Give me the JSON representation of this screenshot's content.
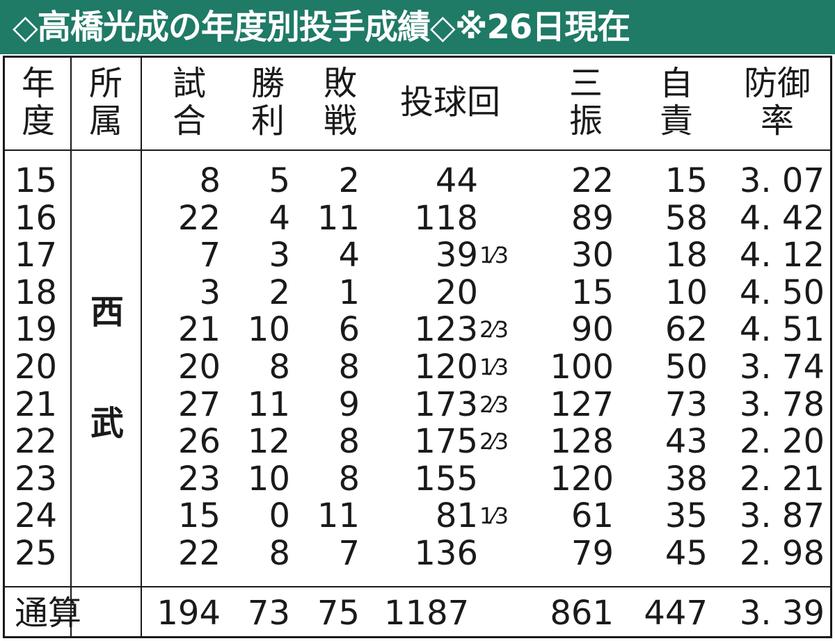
{
  "title": "◇高橋光成の年度別投手成績◇※26日現在",
  "headers": {
    "year": "年\n度",
    "team": "所\n属",
    "games": "試\n合",
    "wins": "勝\n利",
    "losses": "敗\n戦",
    "innings": "投球回",
    "strikeouts": "三\n振",
    "earned_runs": "自\n責",
    "era": "防御\n率"
  },
  "team_chars": [
    "西",
    "武"
  ],
  "rows": [
    {
      "year": "15",
      "games": "8",
      "wins": "5",
      "losses": "2",
      "ip": "44",
      "ip_frac": "",
      "so": "22",
      "er": "15",
      "era": "3. 07"
    },
    {
      "year": "16",
      "games": "22",
      "wins": "4",
      "losses": "11",
      "ip": "118",
      "ip_frac": "",
      "so": "89",
      "er": "58",
      "era": "4. 42"
    },
    {
      "year": "17",
      "games": "7",
      "wins": "3",
      "losses": "4",
      "ip": "39",
      "ip_frac": "1⁄3",
      "so": "30",
      "er": "18",
      "era": "4. 12"
    },
    {
      "year": "18",
      "games": "3",
      "wins": "2",
      "losses": "1",
      "ip": "20",
      "ip_frac": "",
      "so": "15",
      "er": "10",
      "era": "4. 50"
    },
    {
      "year": "19",
      "games": "21",
      "wins": "10",
      "losses": "6",
      "ip": "123",
      "ip_frac": "2⁄3",
      "so": "90",
      "er": "62",
      "era": "4. 51"
    },
    {
      "year": "20",
      "games": "20",
      "wins": "8",
      "losses": "8",
      "ip": "120",
      "ip_frac": "1⁄3",
      "so": "100",
      "er": "50",
      "era": "3. 74"
    },
    {
      "year": "21",
      "games": "27",
      "wins": "11",
      "losses": "9",
      "ip": "173",
      "ip_frac": "2⁄3",
      "so": "127",
      "er": "73",
      "era": "3. 78"
    },
    {
      "year": "22",
      "games": "26",
      "wins": "12",
      "losses": "8",
      "ip": "175",
      "ip_frac": "2⁄3",
      "so": "128",
      "er": "43",
      "era": "2. 20"
    },
    {
      "year": "23",
      "games": "23",
      "wins": "10",
      "losses": "8",
      "ip": "155",
      "ip_frac": "",
      "so": "120",
      "er": "38",
      "era": "2. 21"
    },
    {
      "year": "24",
      "games": "15",
      "wins": "0",
      "losses": "11",
      "ip": "81",
      "ip_frac": "1⁄3",
      "so": "61",
      "er": "35",
      "era": "3. 87"
    },
    {
      "year": "25",
      "games": "22",
      "wins": "8",
      "losses": "7",
      "ip": "136",
      "ip_frac": "",
      "so": "79",
      "er": "45",
      "era": "2. 98"
    }
  ],
  "total": {
    "label": "通算",
    "games": "194",
    "wins": "73",
    "losses": "75",
    "ip": "1187",
    "so": "861",
    "er": "447",
    "era": "3. 39"
  },
  "colors": {
    "title_bg": "#1f7a66",
    "title_fg": "#ffffff",
    "lines": "#1a1a1a"
  }
}
